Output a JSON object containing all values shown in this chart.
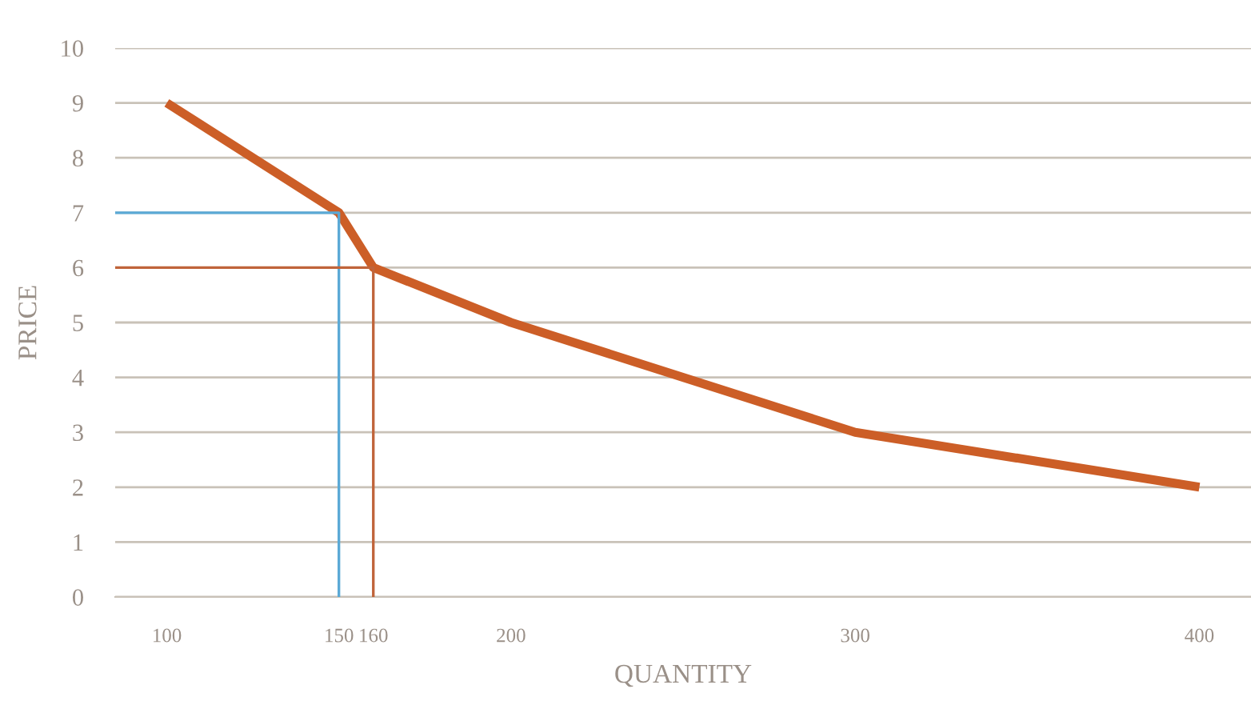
{
  "chart_data": {
    "type": "line",
    "xlabel": "QUANTITY",
    "ylabel": "PRICE",
    "series": [
      {
        "color": "#5aa9d6",
        "x": [
          85,
          150,
          150
        ],
        "values": [
          7,
          7,
          0
        ]
      },
      {
        "color": "#c0643a",
        "x": [
          85,
          160,
          160
        ],
        "values": [
          6,
          6,
          0
        ]
      },
      {
        "color": "#cc5e27",
        "x": [
          100,
          150,
          160,
          200,
          300,
          400
        ],
        "values": [
          9,
          7,
          6,
          5,
          3,
          2
        ]
      }
    ],
    "xlim": [
      85,
      415
    ],
    "xticks": [
      100,
      150,
      160,
      200,
      300,
      400
    ],
    "ylim": [
      0,
      10
    ],
    "yticks": [
      0,
      1,
      2,
      3,
      4,
      5,
      6,
      7,
      8,
      9,
      10
    ],
    "grid": "y",
    "legend": false,
    "marker": "none",
    "line_style": "solid"
  }
}
